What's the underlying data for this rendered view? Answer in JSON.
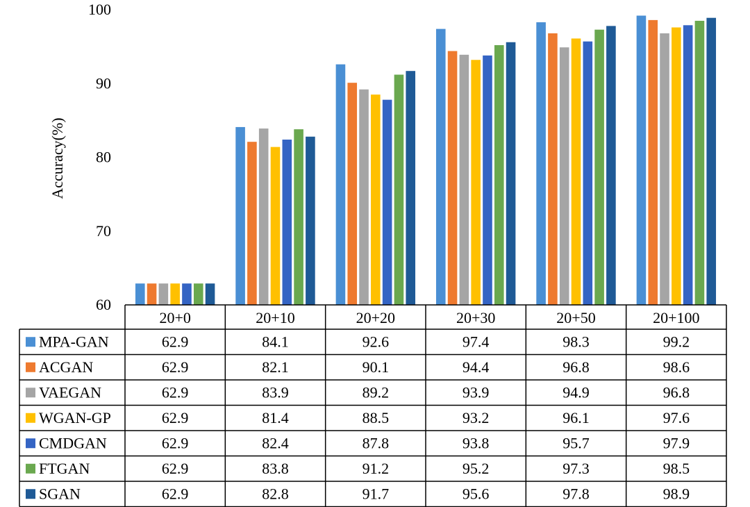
{
  "chart_data": {
    "type": "bar",
    "title": "",
    "xlabel": "",
    "ylabel": "Accuracy(%)",
    "ylim": [
      60,
      100
    ],
    "yticks": [
      60,
      70,
      80,
      90,
      100
    ],
    "grid": false,
    "legend": "table-left",
    "categories": [
      "20+0",
      "20+10",
      "20+20",
      "20+30",
      "20+50",
      "20+100"
    ],
    "series": [
      {
        "name": "MPA-GAN",
        "color": "#4a8fd4",
        "values": [
          62.9,
          84.1,
          92.6,
          97.4,
          98.3,
          99.2
        ]
      },
      {
        "name": "ACGAN",
        "color": "#ee7a2f",
        "values": [
          62.9,
          82.1,
          90.1,
          94.4,
          96.8,
          98.6
        ]
      },
      {
        "name": "VAEGAN",
        "color": "#a5a5a5",
        "values": [
          62.9,
          83.9,
          89.2,
          93.9,
          94.9,
          96.8
        ]
      },
      {
        "name": "WGAN-GP",
        "color": "#ffc000",
        "values": [
          62.9,
          81.4,
          88.5,
          93.2,
          96.1,
          97.6
        ]
      },
      {
        "name": "CMDGAN",
        "color": "#3464c4",
        "values": [
          62.9,
          82.4,
          87.8,
          93.8,
          95.7,
          97.9
        ]
      },
      {
        "name": "FTGAN",
        "color": "#6aa84f",
        "values": [
          62.9,
          83.8,
          91.2,
          95.2,
          97.3,
          98.5
        ]
      },
      {
        "name": "SGAN",
        "color": "#1f5a96",
        "values": [
          62.9,
          82.8,
          91.7,
          95.6,
          97.8,
          98.9
        ]
      }
    ]
  }
}
